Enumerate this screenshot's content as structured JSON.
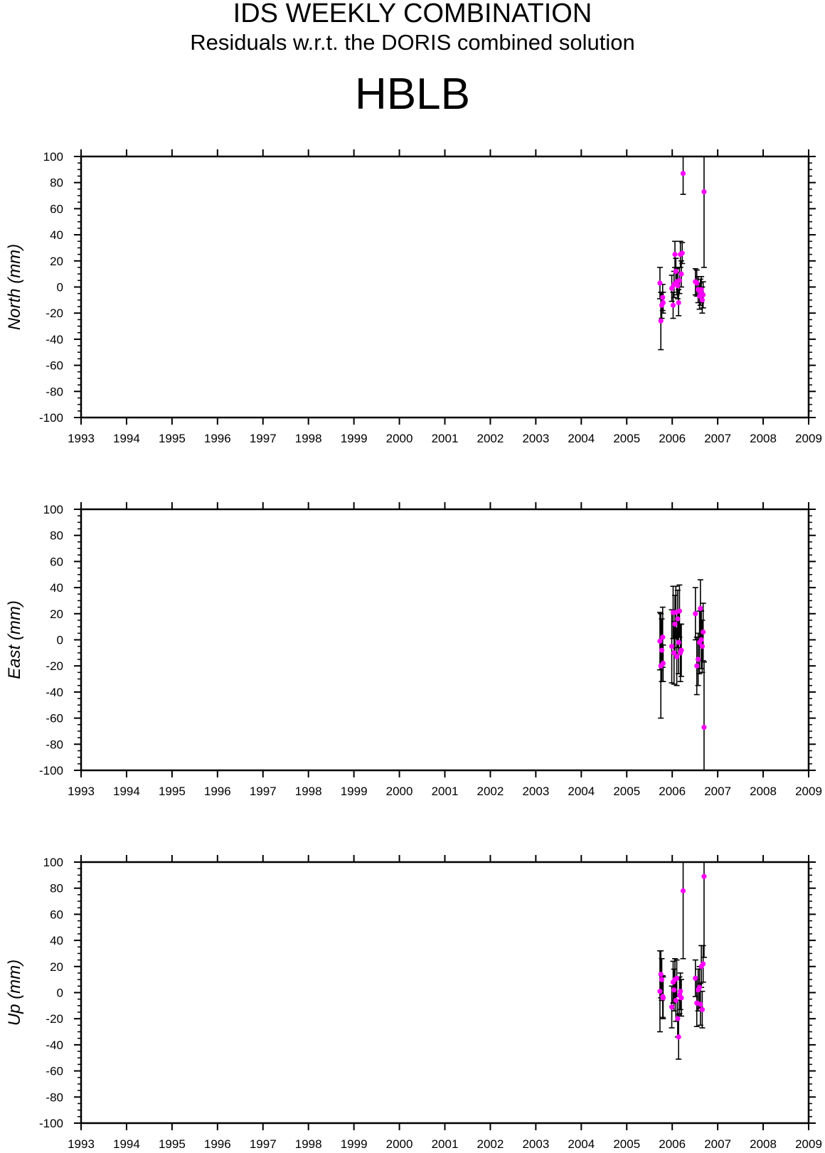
{
  "header": {
    "title": "IDS WEEKLY COMBINATION",
    "subtitle": "Residuals w.r.t. the DORIS combined solution",
    "station": "HBLB"
  },
  "colors": {
    "point": "#ff00ff",
    "errorbar": "#000000",
    "axis": "#000000"
  },
  "chart_data": [
    {
      "type": "scatter",
      "panel": "north",
      "ylabel": "North (mm)",
      "xlim": [
        1993,
        2009
      ],
      "ylim": [
        -100,
        100
      ],
      "x_ticks": [
        "1993",
        "1994",
        "1995",
        "1996",
        "1997",
        "1998",
        "1999",
        "2000",
        "2001",
        "2002",
        "2003",
        "2004",
        "2005",
        "2006",
        "2007",
        "2008",
        "2009"
      ],
      "y_ticks": [
        "100",
        "80",
        "60",
        "40",
        "20",
        "0",
        "-20",
        "-40",
        "-60",
        "-80",
        "-100"
      ],
      "points": [
        {
          "x": 2005.73,
          "y": 3,
          "err": 12
        },
        {
          "x": 2005.75,
          "y": -26,
          "err": 22
        },
        {
          "x": 2005.77,
          "y": -14,
          "err": 10
        },
        {
          "x": 2005.79,
          "y": -8,
          "err": 10
        },
        {
          "x": 2005.8,
          "y": -12,
          "err": 8
        },
        {
          "x": 2005.99,
          "y": -1,
          "err": 10
        },
        {
          "x": 2006.02,
          "y": -14,
          "err": 10
        },
        {
          "x": 2006.04,
          "y": 2,
          "err": 10
        },
        {
          "x": 2006.06,
          "y": 25,
          "err": 10
        },
        {
          "x": 2006.08,
          "y": 12,
          "err": 10
        },
        {
          "x": 2006.1,
          "y": 4,
          "err": 10
        },
        {
          "x": 2006.12,
          "y": 1,
          "err": 10
        },
        {
          "x": 2006.14,
          "y": -12,
          "err": 10
        },
        {
          "x": 2006.16,
          "y": 5,
          "err": 10
        },
        {
          "x": 2006.18,
          "y": 25,
          "err": 10
        },
        {
          "x": 2006.2,
          "y": 10,
          "err": 10
        },
        {
          "x": 2006.22,
          "y": 26,
          "err": 8
        },
        {
          "x": 2006.24,
          "y": 87,
          "err": 16
        },
        {
          "x": 2006.51,
          "y": 4,
          "err": 10
        },
        {
          "x": 2006.54,
          "y": 3,
          "err": 10
        },
        {
          "x": 2006.57,
          "y": -2,
          "err": 10
        },
        {
          "x": 2006.6,
          "y": -7,
          "err": 10
        },
        {
          "x": 2006.62,
          "y": -4,
          "err": 10
        },
        {
          "x": 2006.64,
          "y": -2,
          "err": 10
        },
        {
          "x": 2006.66,
          "y": -10,
          "err": 10
        },
        {
          "x": 2006.68,
          "y": -6,
          "err": 10
        },
        {
          "x": 2006.7,
          "y": 73,
          "err": 58
        }
      ]
    },
    {
      "type": "scatter",
      "panel": "east",
      "ylabel": "East (mm)",
      "xlim": [
        1993,
        2009
      ],
      "ylim": [
        -100,
        100
      ],
      "x_ticks": [
        "1993",
        "1994",
        "1995",
        "1996",
        "1997",
        "1998",
        "1999",
        "2000",
        "2001",
        "2002",
        "2003",
        "2004",
        "2005",
        "2006",
        "2007",
        "2008",
        "2009"
      ],
      "y_ticks": [
        "100",
        "80",
        "60",
        "40",
        "20",
        "0",
        "-20",
        "-40",
        "-60",
        "-80",
        "-100"
      ],
      "points": [
        {
          "x": 2005.73,
          "y": -1,
          "err": 22
        },
        {
          "x": 2005.75,
          "y": -20,
          "err": 40
        },
        {
          "x": 2005.77,
          "y": -8,
          "err": 24
        },
        {
          "x": 2005.79,
          "y": 2,
          "err": 23
        },
        {
          "x": 2005.8,
          "y": -18,
          "err": 14
        },
        {
          "x": 2005.99,
          "y": -5,
          "err": 28
        },
        {
          "x": 2006.02,
          "y": 21,
          "err": 20
        },
        {
          "x": 2006.04,
          "y": -10,
          "err": 24
        },
        {
          "x": 2006.06,
          "y": 12,
          "err": 22
        },
        {
          "x": 2006.08,
          "y": 21,
          "err": 20
        },
        {
          "x": 2006.1,
          "y": -13,
          "err": 22
        },
        {
          "x": 2006.12,
          "y": 16,
          "err": 22
        },
        {
          "x": 2006.14,
          "y": -2,
          "err": 24
        },
        {
          "x": 2006.16,
          "y": 22,
          "err": 20
        },
        {
          "x": 2006.18,
          "y": -10,
          "err": 22
        },
        {
          "x": 2006.2,
          "y": -8,
          "err": 20
        },
        {
          "x": 2006.51,
          "y": 20,
          "err": 20
        },
        {
          "x": 2006.54,
          "y": -20,
          "err": 22
        },
        {
          "x": 2006.57,
          "y": -15,
          "err": 20
        },
        {
          "x": 2006.6,
          "y": -2,
          "err": 24
        },
        {
          "x": 2006.62,
          "y": 24,
          "err": 22
        },
        {
          "x": 2006.64,
          "y": 0,
          "err": 22
        },
        {
          "x": 2006.66,
          "y": -5,
          "err": 20
        },
        {
          "x": 2006.68,
          "y": 6,
          "err": 22
        },
        {
          "x": 2006.7,
          "y": -67,
          "err": 50
        }
      ]
    },
    {
      "type": "scatter",
      "panel": "up",
      "ylabel": "Up (mm)",
      "xlim": [
        1993,
        2009
      ],
      "ylim": [
        -100,
        100
      ],
      "x_ticks": [
        "1993",
        "1994",
        "1995",
        "1996",
        "1997",
        "1998",
        "1999",
        "2000",
        "2001",
        "2002",
        "2003",
        "2004",
        "2005",
        "2006",
        "2007",
        "2008",
        "2009"
      ],
      "y_ticks": [
        "100",
        "80",
        "60",
        "40",
        "20",
        "0",
        "-20",
        "-40",
        "-60",
        "-80",
        "-100"
      ],
      "points": [
        {
          "x": 2005.73,
          "y": 1,
          "err": 31
        },
        {
          "x": 2005.75,
          "y": 14,
          "err": 18
        },
        {
          "x": 2005.77,
          "y": 10,
          "err": 16
        },
        {
          "x": 2005.79,
          "y": -3,
          "err": 16
        },
        {
          "x": 2005.8,
          "y": -4,
          "err": 16
        },
        {
          "x": 2005.99,
          "y": -11,
          "err": 16
        },
        {
          "x": 2006.02,
          "y": 8,
          "err": 16
        },
        {
          "x": 2006.04,
          "y": 2,
          "err": 16
        },
        {
          "x": 2006.06,
          "y": 10,
          "err": 16
        },
        {
          "x": 2006.08,
          "y": -6,
          "err": 16
        },
        {
          "x": 2006.1,
          "y": 11,
          "err": 14
        },
        {
          "x": 2006.12,
          "y": -20,
          "err": 14
        },
        {
          "x": 2006.14,
          "y": -34,
          "err": 17
        },
        {
          "x": 2006.16,
          "y": -2,
          "err": 14
        },
        {
          "x": 2006.18,
          "y": 1,
          "err": 14
        },
        {
          "x": 2006.2,
          "y": -4,
          "err": 14
        },
        {
          "x": 2006.24,
          "y": 78,
          "err": 52
        },
        {
          "x": 2006.51,
          "y": 11,
          "err": 14
        },
        {
          "x": 2006.54,
          "y": -8,
          "err": 18
        },
        {
          "x": 2006.57,
          "y": 2,
          "err": 16
        },
        {
          "x": 2006.6,
          "y": 4,
          "err": 16
        },
        {
          "x": 2006.62,
          "y": -9,
          "err": 16
        },
        {
          "x": 2006.64,
          "y": 20,
          "err": 16
        },
        {
          "x": 2006.66,
          "y": -13,
          "err": 14
        },
        {
          "x": 2006.68,
          "y": 22,
          "err": 14
        },
        {
          "x": 2006.7,
          "y": 89,
          "err": 62
        }
      ]
    }
  ]
}
